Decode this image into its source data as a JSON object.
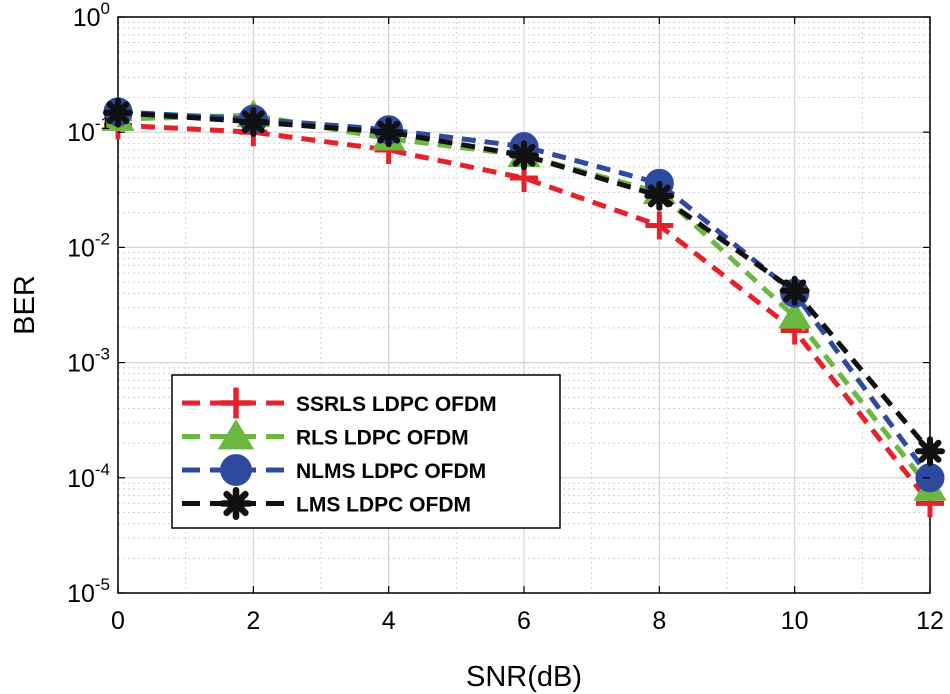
{
  "chart_data": {
    "type": "line",
    "title": "",
    "xlabel": "SNR(dB)",
    "ylabel": "BER",
    "x": [
      0,
      2,
      4,
      6,
      8,
      10,
      12
    ],
    "xlim": [
      0,
      12
    ],
    "xticks": [
      "0",
      "2",
      "4",
      "6",
      "8",
      "10",
      "12"
    ],
    "ylim": [
      1e-05,
      1
    ],
    "yscale": "log",
    "yticks": [
      {
        "base": "10",
        "exp": "0"
      },
      {
        "base": "10",
        "exp": "-1"
      },
      {
        "base": "10",
        "exp": "-2"
      },
      {
        "base": "10",
        "exp": "-3"
      },
      {
        "base": "10",
        "exp": "-4"
      },
      {
        "base": "10",
        "exp": "-5"
      }
    ],
    "grid": true,
    "legend_position": "lower-left",
    "series": [
      {
        "name": "SSRLS LDPC OFDM",
        "color": "#e8202a",
        "marker": "plus",
        "values": [
          0.115,
          0.1,
          0.07,
          0.04,
          0.0155,
          0.0019,
          6e-05
        ]
      },
      {
        "name": "RLS LDPC OFDM",
        "color": "#6ab83f",
        "marker": "triangle",
        "values": [
          0.13,
          0.14,
          0.088,
          0.063,
          0.03,
          0.0025,
          8e-05
        ]
      },
      {
        "name": "NLMS LDPC OFDM",
        "color": "#2e4a9e",
        "marker": "circle",
        "values": [
          0.15,
          0.13,
          0.105,
          0.075,
          0.036,
          0.004,
          0.0001
        ]
      },
      {
        "name": "LMS LDPC OFDM",
        "color": "#111111",
        "marker": "asterisk",
        "values": [
          0.148,
          0.123,
          0.1,
          0.063,
          0.028,
          0.0042,
          0.00017
        ]
      }
    ]
  }
}
